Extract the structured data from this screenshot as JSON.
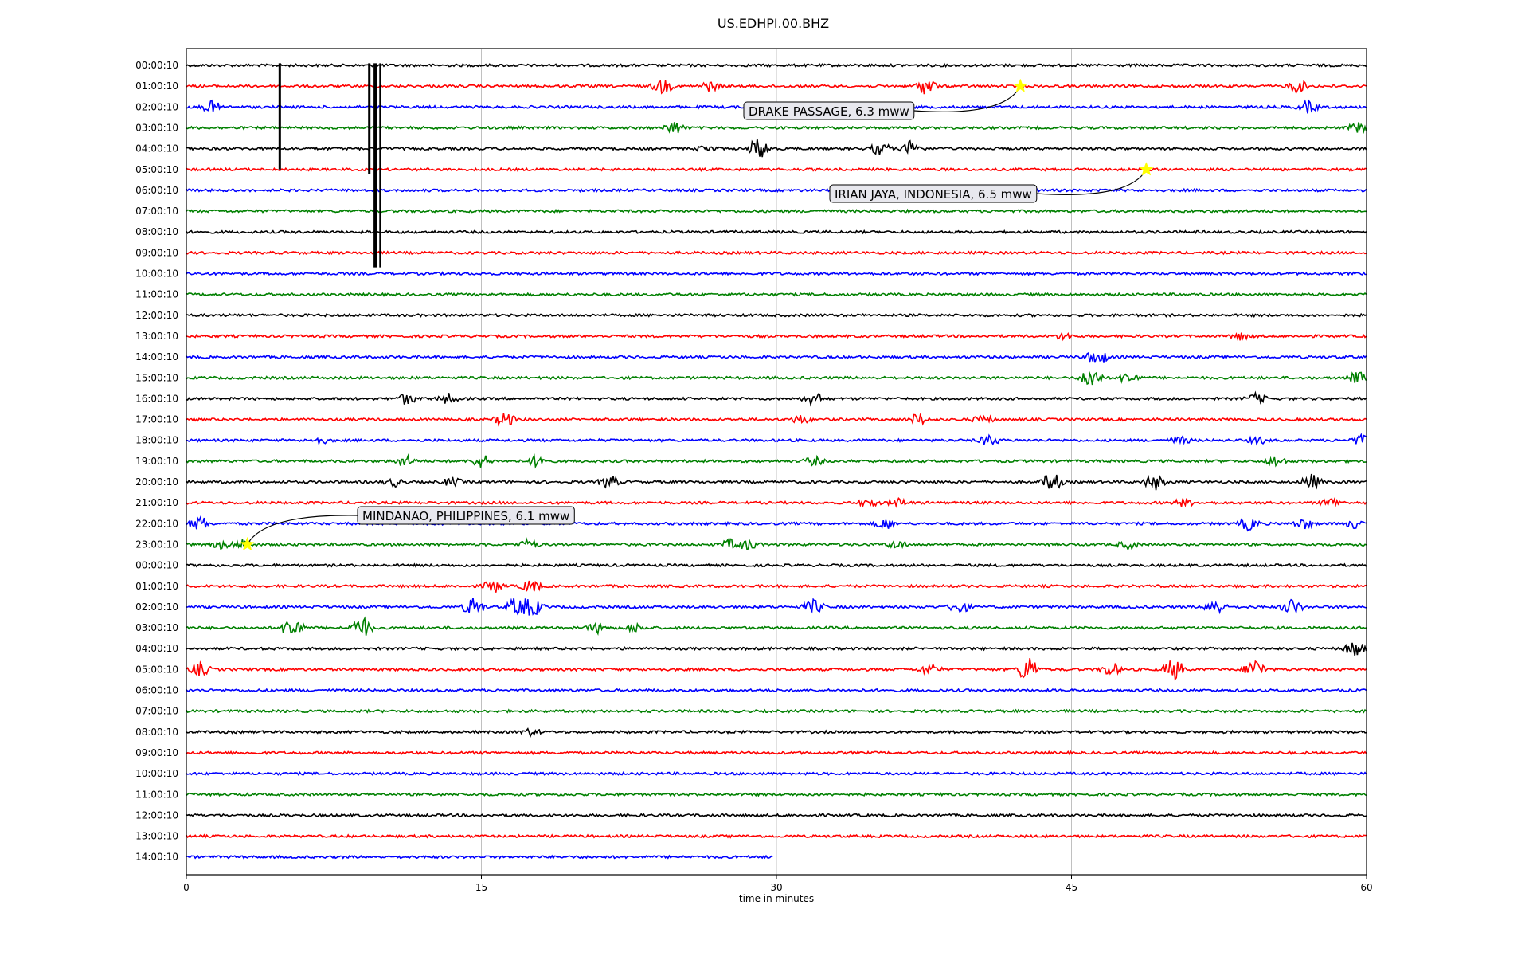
{
  "chart_data": {
    "type": "line",
    "title": "US.EDHPI.00.BHZ",
    "xlabel": "time in minutes",
    "ylabel": "",
    "xlim": [
      0,
      60
    ],
    "xticks": [
      0,
      15,
      30,
      45,
      60
    ],
    "grid": "vertical lines at 15, 30, 45",
    "line_colors": [
      "#000000",
      "#ff0000",
      "#0000ff",
      "#008000"
    ],
    "star_color": "#ffff00",
    "rows": [
      {
        "label": "00:00:10",
        "color": "#000000",
        "end_minute": 60
      },
      {
        "label": "01:00:10",
        "color": "#ff0000",
        "end_minute": 60
      },
      {
        "label": "02:00:10",
        "color": "#0000ff",
        "end_minute": 60
      },
      {
        "label": "03:00:10",
        "color": "#008000",
        "end_minute": 60
      },
      {
        "label": "04:00:10",
        "color": "#000000",
        "end_minute": 60
      },
      {
        "label": "05:00:10",
        "color": "#ff0000",
        "end_minute": 60
      },
      {
        "label": "06:00:10",
        "color": "#0000ff",
        "end_minute": 60
      },
      {
        "label": "07:00:10",
        "color": "#008000",
        "end_minute": 60
      },
      {
        "label": "08:00:10",
        "color": "#000000",
        "end_minute": 60
      },
      {
        "label": "09:00:10",
        "color": "#ff0000",
        "end_minute": 60
      },
      {
        "label": "10:00:10",
        "color": "#0000ff",
        "end_minute": 60
      },
      {
        "label": "11:00:10",
        "color": "#008000",
        "end_minute": 60
      },
      {
        "label": "12:00:10",
        "color": "#000000",
        "end_minute": 60
      },
      {
        "label": "13:00:10",
        "color": "#ff0000",
        "end_minute": 60
      },
      {
        "label": "14:00:10",
        "color": "#0000ff",
        "end_minute": 60
      },
      {
        "label": "15:00:10",
        "color": "#008000",
        "end_minute": 60
      },
      {
        "label": "16:00:10",
        "color": "#000000",
        "end_minute": 60
      },
      {
        "label": "17:00:10",
        "color": "#ff0000",
        "end_minute": 60
      },
      {
        "label": "18:00:10",
        "color": "#0000ff",
        "end_minute": 60
      },
      {
        "label": "19:00:10",
        "color": "#008000",
        "end_minute": 60
      },
      {
        "label": "20:00:10",
        "color": "#000000",
        "end_minute": 60
      },
      {
        "label": "21:00:10",
        "color": "#ff0000",
        "end_minute": 60
      },
      {
        "label": "22:00:10",
        "color": "#0000ff",
        "end_minute": 60
      },
      {
        "label": "23:00:10",
        "color": "#008000",
        "end_minute": 60
      },
      {
        "label": "00:00:10",
        "color": "#000000",
        "end_minute": 60
      },
      {
        "label": "01:00:10",
        "color": "#ff0000",
        "end_minute": 60
      },
      {
        "label": "02:00:10",
        "color": "#0000ff",
        "end_minute": 60
      },
      {
        "label": "03:00:10",
        "color": "#008000",
        "end_minute": 60
      },
      {
        "label": "04:00:10",
        "color": "#000000",
        "end_minute": 60
      },
      {
        "label": "05:00:10",
        "color": "#ff0000",
        "end_minute": 60
      },
      {
        "label": "06:00:10",
        "color": "#0000ff",
        "end_minute": 60
      },
      {
        "label": "07:00:10",
        "color": "#008000",
        "end_minute": 60
      },
      {
        "label": "08:00:10",
        "color": "#000000",
        "end_minute": 60
      },
      {
        "label": "09:00:10",
        "color": "#ff0000",
        "end_minute": 60
      },
      {
        "label": "10:00:10",
        "color": "#0000ff",
        "end_minute": 60
      },
      {
        "label": "11:00:10",
        "color": "#008000",
        "end_minute": 60
      },
      {
        "label": "12:00:10",
        "color": "#000000",
        "end_minute": 60
      },
      {
        "label": "13:00:10",
        "color": "#ff0000",
        "end_minute": 60
      },
      {
        "label": "14:00:10",
        "color": "#0000ff",
        "end_minute": 29.8
      }
    ],
    "events": [
      {
        "text": "DRAKE PASSAGE, 6.3 mww",
        "row": 1,
        "minute": 42.4
      },
      {
        "text": "IRIAN JAYA, INDONESIA, 6.5 mww",
        "row": 5,
        "minute": 48.8
      },
      {
        "text": "MINDANAO, PHILIPPINES, 6.1 mww",
        "row": 23,
        "minute": 3.1
      }
    ]
  }
}
